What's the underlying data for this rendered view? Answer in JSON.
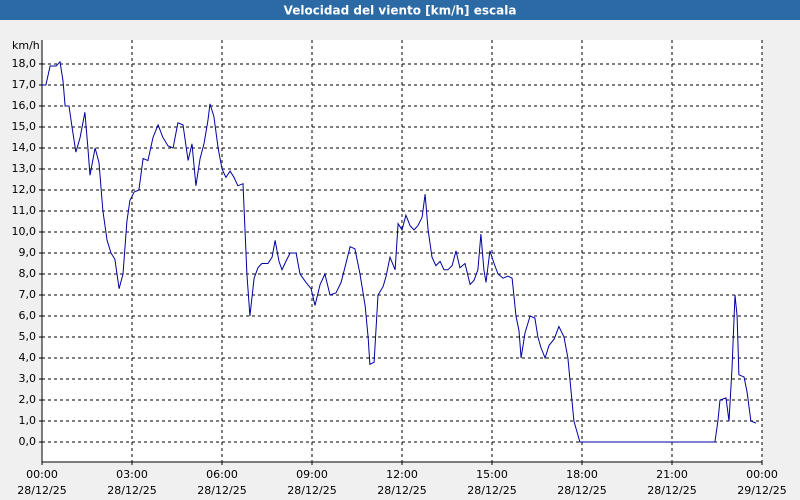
{
  "chart_data": {
    "type": "line",
    "title": "Velocidad del viento [km/h] escala",
    "y_label": "km/h",
    "x": [
      0,
      0.13,
      0.27,
      0.47,
      0.6,
      0.7,
      0.77,
      0.9,
      1.0,
      1.13,
      1.27,
      1.43,
      1.53,
      1.6,
      1.77,
      1.9,
      2.03,
      2.17,
      2.3,
      2.43,
      2.57,
      2.7,
      2.83,
      2.93,
      3.07,
      3.23,
      3.37,
      3.53,
      3.7,
      3.87,
      4.03,
      4.2,
      4.37,
      4.53,
      4.7,
      4.87,
      5.0,
      5.13,
      5.27,
      5.4,
      5.53,
      5.6,
      5.73,
      5.87,
      6.0,
      6.13,
      6.27,
      6.4,
      6.53,
      6.7,
      6.83,
      6.93,
      7.07,
      7.2,
      7.33,
      7.53,
      7.67,
      7.77,
      7.9,
      8.0,
      8.13,
      8.27,
      8.47,
      8.6,
      8.8,
      8.97,
      9.1,
      9.27,
      9.43,
      9.6,
      9.8,
      9.97,
      10.13,
      10.27,
      10.43,
      10.6,
      10.77,
      10.87,
      10.93,
      11.07,
      11.2,
      11.37,
      11.47,
      11.6,
      11.77,
      11.87,
      12.0,
      12.13,
      12.27,
      12.4,
      12.53,
      12.67,
      12.77,
      12.87,
      13.0,
      13.13,
      13.27,
      13.4,
      13.53,
      13.67,
      13.8,
      13.93,
      14.1,
      14.27,
      14.4,
      14.53,
      14.63,
      14.73,
      14.8,
      14.93,
      15.07,
      15.2,
      15.37,
      15.53,
      15.67,
      15.8,
      15.9,
      15.97,
      16.1,
      16.27,
      16.43,
      16.53,
      16.63,
      16.77,
      16.9,
      17.07,
      17.23,
      17.4,
      17.53,
      17.63,
      17.73,
      17.87,
      17.93,
      22.43,
      22.53,
      22.6,
      22.8,
      22.9,
      23.0,
      23.1,
      23.17,
      23.23,
      23.4,
      23.5,
      23.63,
      23.8
    ],
    "series": [
      {
        "color": "#0000a0",
        "values": [
          17.0,
          17.0,
          17.9,
          17.9,
          18.1,
          17.2,
          16.0,
          16.0,
          15.0,
          13.8,
          14.5,
          15.7,
          14.0,
          12.7,
          14.0,
          13.3,
          11.0,
          9.6,
          9.0,
          8.7,
          7.3,
          8.0,
          10.5,
          11.5,
          11.9,
          12.0,
          13.5,
          13.4,
          14.5,
          15.1,
          14.5,
          14.1,
          14.0,
          15.2,
          15.1,
          13.4,
          14.2,
          12.2,
          13.5,
          14.2,
          15.3,
          16.1,
          15.5,
          14.0,
          13.0,
          12.6,
          12.9,
          12.6,
          12.2,
          12.3,
          8.0,
          6.0,
          7.8,
          8.3,
          8.5,
          8.5,
          8.8,
          9.6,
          8.6,
          8.2,
          8.6,
          9.0,
          9.0,
          8.0,
          7.6,
          7.3,
          6.5,
          7.5,
          8.0,
          7.0,
          7.1,
          7.6,
          8.5,
          9.3,
          9.2,
          8.0,
          6.5,
          5.0,
          3.7,
          3.8,
          7.0,
          7.4,
          7.9,
          8.8,
          8.2,
          10.4,
          10.1,
          10.8,
          10.3,
          10.1,
          10.3,
          10.7,
          11.8,
          10.1,
          8.8,
          8.4,
          8.6,
          8.2,
          8.2,
          8.4,
          9.1,
          8.3,
          8.5,
          7.5,
          7.7,
          8.2,
          9.9,
          8.2,
          7.6,
          9.1,
          8.5,
          8.0,
          7.8,
          7.9,
          7.8,
          6.0,
          5.3,
          4.0,
          5.2,
          6.0,
          5.9,
          5.0,
          4.5,
          4.0,
          4.6,
          4.9,
          5.5,
          5.0,
          4.0,
          2.5,
          1.0,
          0.3,
          0.0,
          0.0,
          1.0,
          2.0,
          2.1,
          1.0,
          3.5,
          7.0,
          6.0,
          3.2,
          3.1,
          2.4,
          1.0,
          0.9
        ]
      }
    ],
    "xlim": [
      0,
      24
    ],
    "xticks": [
      {
        "value": 0,
        "label": "00:00"
      },
      {
        "value": 3,
        "label": "03:00"
      },
      {
        "value": 6,
        "label": "06:00"
      },
      {
        "value": 9,
        "label": "09:00"
      },
      {
        "value": 12,
        "label": "12:00"
      },
      {
        "value": 15,
        "label": "15:00"
      },
      {
        "value": 18,
        "label": "18:00"
      },
      {
        "value": 21,
        "label": "21:00"
      },
      {
        "value": 24,
        "label": "00:00"
      }
    ],
    "xtick_dates": [
      "28/12/25",
      "28/12/25",
      "28/12/25",
      "28/12/25",
      "28/12/25",
      "28/12/25",
      "28/12/25",
      "28/12/25",
      "29/12/25"
    ],
    "ylim": [
      -0.95,
      19.14
    ],
    "yticks": [
      {
        "value": 0,
        "label": "0,0"
      },
      {
        "value": 1,
        "label": "1,0"
      },
      {
        "value": 2,
        "label": "2,0"
      },
      {
        "value": 3,
        "label": "3,0"
      },
      {
        "value": 4,
        "label": "4,0"
      },
      {
        "value": 5,
        "label": "5,0"
      },
      {
        "value": 6,
        "label": "6,0"
      },
      {
        "value": 7,
        "label": "7,0"
      },
      {
        "value": 8,
        "label": "8,0"
      },
      {
        "value": 9,
        "label": "9,0"
      },
      {
        "value": 10,
        "label": "10,0"
      },
      {
        "value": 11,
        "label": "11,0"
      },
      {
        "value": 12,
        "label": "12,0"
      },
      {
        "value": 13,
        "label": "13,0"
      },
      {
        "value": 14,
        "label": "14,0"
      },
      {
        "value": 15,
        "label": "15,0"
      },
      {
        "value": 16,
        "label": "16,0"
      },
      {
        "value": 17,
        "label": "17,0"
      },
      {
        "value": 18,
        "label": "18,0"
      }
    ],
    "grid": true
  }
}
